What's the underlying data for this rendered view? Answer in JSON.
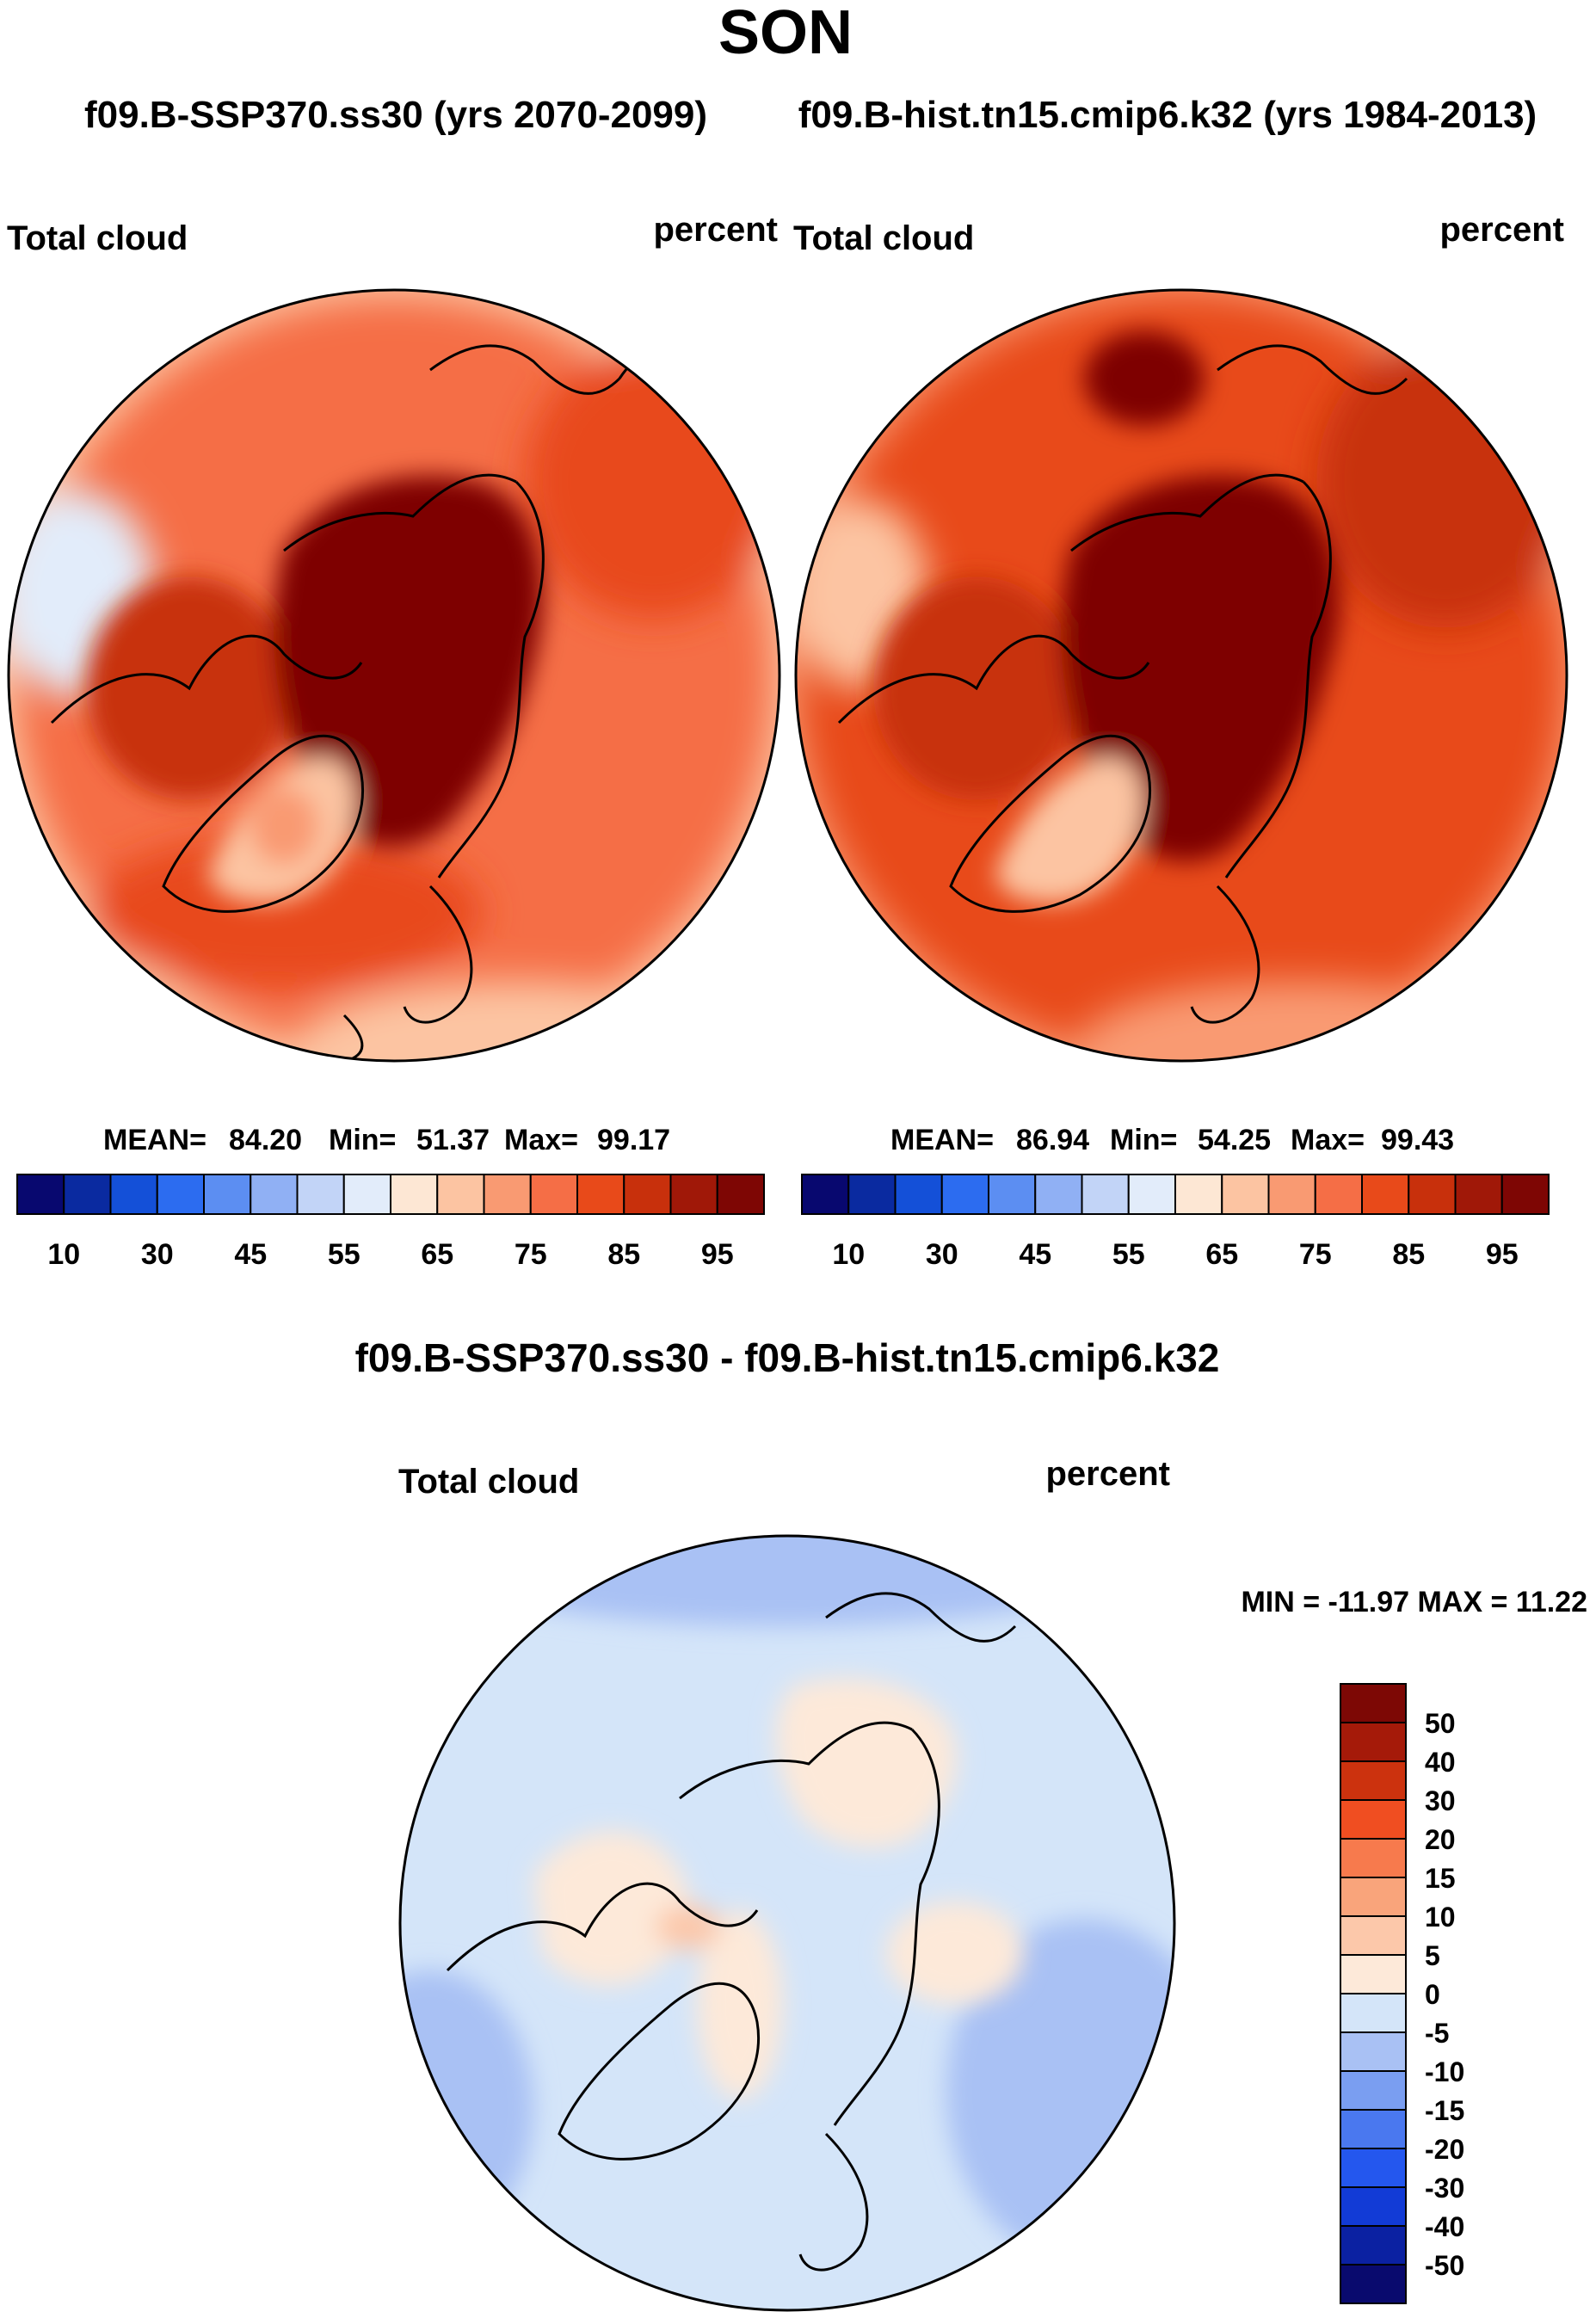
{
  "title": "SON",
  "panel_titles": {
    "left": "f09.B-SSP370.ss30 (yrs 2070-2099)",
    "right": "f09.B-hist.tn15.cmip6.k32 (yrs 1984-2013)",
    "diff": "f09.B-SSP370.ss30 - f09.B-hist.tn15.cmip6.k32"
  },
  "colors": {
    "abs_scale": [
      "#08086f",
      "#0a2aa0",
      "#1450d8",
      "#2c6cf0",
      "#5c8ef2",
      "#90b0f4",
      "#c2d4f7",
      "#e2ecfa",
      "#fde7d4",
      "#fcc4a2",
      "#f99a72",
      "#f56e46",
      "#e84a1a",
      "#c8300c",
      "#a01808",
      "#7e0604"
    ],
    "diff_scale": [
      "#090a6e",
      "#0b21a2",
      "#123bd6",
      "#2457ee",
      "#4a78ef",
      "#7a9ef1",
      "#a9c1f4",
      "#d4e5f9",
      "#fde9d9",
      "#fcc8aa",
      "#f9a47b",
      "#f77a4d",
      "#f04e21",
      "#cc320e",
      "#a51a09",
      "#7d0805"
    ],
    "land_outline": "#000000"
  },
  "chart_data": [
    {
      "type": "heatmap",
      "projection": "north polar stereographic",
      "title": "f09.B-SSP370.ss30 (yrs 2070-2099)",
      "variable": "Total cloud",
      "units": "percent",
      "stats": {
        "mean_label": "MEAN=",
        "mean": "84.20",
        "min_label": "Min=",
        "min": "51.37",
        "max_label": "Max=",
        "max": "99.17"
      },
      "colorbar": {
        "orientation": "horizontal",
        "ticks": [
          "10",
          "30",
          "45",
          "55",
          "65",
          "75",
          "85",
          "95"
        ]
      }
    },
    {
      "type": "heatmap",
      "projection": "north polar stereographic",
      "title": "f09.B-hist.tn15.cmip6.k32 (yrs 1984-2013)",
      "variable": "Total cloud",
      "units": "percent",
      "stats": {
        "mean_label": "MEAN=",
        "mean": "86.94",
        "min_label": "Min=",
        "min": "54.25",
        "max_label": "Max=",
        "max": "99.43"
      },
      "colorbar": {
        "orientation": "horizontal",
        "ticks": [
          "10",
          "30",
          "45",
          "55",
          "65",
          "75",
          "85",
          "95"
        ]
      }
    },
    {
      "type": "heatmap",
      "projection": "north polar stereographic",
      "title": "f09.B-SSP370.ss30 - f09.B-hist.tn15.cmip6.k32",
      "variable": "Total cloud",
      "units": "percent",
      "stats": {
        "text": "MIN = -11.97 MAX =  11.22",
        "min": -11.97,
        "max": 11.22
      },
      "colorbar": {
        "orientation": "vertical",
        "ticks": [
          "50",
          "40",
          "30",
          "20",
          "15",
          "10",
          "5",
          "0",
          "-5",
          "-10",
          "-15",
          "-20",
          "-30",
          "-40",
          "-50"
        ]
      }
    }
  ]
}
